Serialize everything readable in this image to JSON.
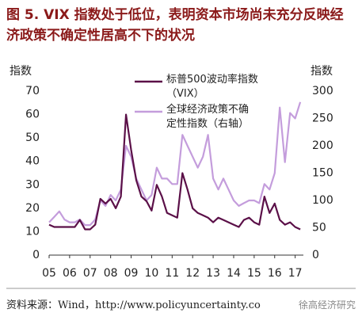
{
  "chart_data": {
    "type": "line",
    "title": "图 5.   VIX 指数处于低位，表明资本市场尚未充分反映经济政策不确定性居高不下的状况",
    "ylabel": "指数",
    "y2label": "指数",
    "source": "资料来源：Wind，http://www.policyuncertainty.co",
    "watermark": "徐高经济研究",
    "x": [
      2005,
      2005.25,
      2005.5,
      2005.75,
      2006,
      2006.25,
      2006.5,
      2006.75,
      2007,
      2007.25,
      2007.5,
      2007.75,
      2008,
      2008.25,
      2008.5,
      2008.75,
      2009,
      2009.25,
      2009.5,
      2009.75,
      2010,
      2010.25,
      2010.5,
      2010.75,
      2011,
      2011.25,
      2011.5,
      2011.75,
      2012,
      2012.25,
      2012.5,
      2012.75,
      2013,
      2013.25,
      2013.5,
      2013.75,
      2014,
      2014.25,
      2014.5,
      2014.75,
      2015,
      2015.25,
      2015.5,
      2015.75,
      2016,
      2016.25,
      2016.5,
      2016.75,
      2017,
      2017.25
    ],
    "series": [
      {
        "name": "标普500波动率指数（VIX）",
        "color": "#5b1048",
        "axis": "y",
        "values": [
          13,
          12,
          12,
          12,
          12,
          12,
          15,
          11,
          11,
          13,
          24,
          22,
          24,
          20,
          25,
          60,
          45,
          32,
          25,
          23,
          19,
          30,
          25,
          18,
          17,
          16,
          35,
          28,
          20,
          18,
          17,
          16,
          14,
          16,
          15,
          14,
          13,
          12,
          15,
          16,
          14,
          13,
          25,
          18,
          22,
          15,
          13,
          14,
          12,
          11
        ]
      },
      {
        "name": "全球经济政策不确定性指数（右轴）",
        "color": "#c49ddc",
        "axis": "y2",
        "values": [
          60,
          70,
          80,
          65,
          60,
          60,
          65,
          55,
          55,
          65,
          100,
          90,
          110,
          100,
          120,
          200,
          180,
          140,
          120,
          100,
          110,
          160,
          140,
          140,
          130,
          130,
          220,
          200,
          180,
          160,
          180,
          220,
          140,
          120,
          140,
          120,
          100,
          90,
          95,
          100,
          100,
          95,
          130,
          120,
          150,
          270,
          170,
          260,
          250,
          280
        ]
      }
    ],
    "xlim": [
      2005,
      2017.4
    ],
    "xticks": [
      {
        "value": 2005,
        "label": "05"
      },
      {
        "value": 2006,
        "label": "06"
      },
      {
        "value": 2007,
        "label": "07"
      },
      {
        "value": 2008,
        "label": "08"
      },
      {
        "value": 2009,
        "label": "09"
      },
      {
        "value": 2010,
        "label": "10"
      },
      {
        "value": 2011,
        "label": "11"
      },
      {
        "value": 2012,
        "label": "12"
      },
      {
        "value": 2013,
        "label": "13"
      },
      {
        "value": 2014,
        "label": "14"
      },
      {
        "value": 2015,
        "label": "15"
      },
      {
        "value": 2016,
        "label": "16"
      },
      {
        "value": 2017,
        "label": "17"
      }
    ],
    "ylim": [
      0,
      70
    ],
    "yticks": [
      0,
      10,
      20,
      30,
      40,
      50,
      60,
      70
    ],
    "y2lim": [
      0,
      300
    ],
    "y2ticks": [
      0,
      50,
      100,
      150,
      200,
      250,
      300
    ]
  }
}
